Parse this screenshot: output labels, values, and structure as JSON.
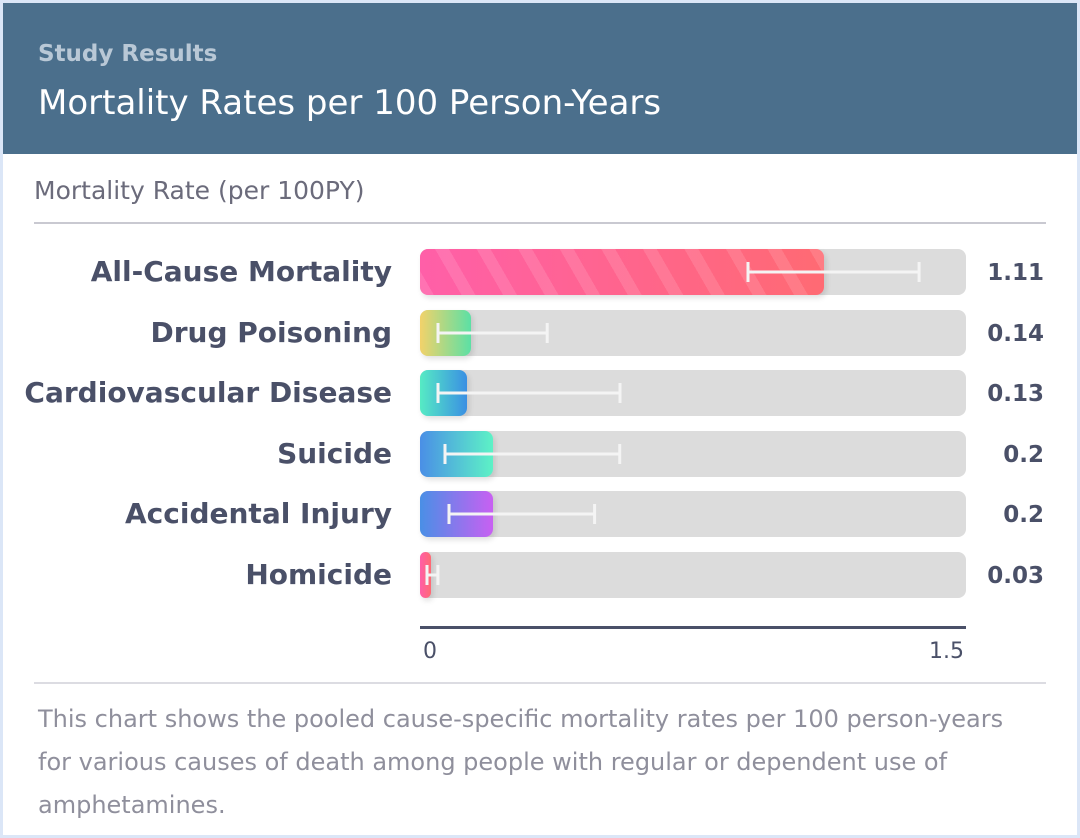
{
  "header": {
    "eyebrow": "Study Results",
    "title": "Mortality Rates per 100 Person-Years"
  },
  "subtitle": "Mortality Rate (per 100PY)",
  "description": "This chart shows the pooled cause-specific mortality rates per 100 person-years for various causes of death among people with regular or dependent use of amphetamines.",
  "chart_data": {
    "type": "bar",
    "orientation": "horizontal",
    "categories": [
      "All-Cause Mortality",
      "Drug Poisoning",
      "Cardiovascular Disease",
      "Suicide",
      "Accidental Injury",
      "Homicide"
    ],
    "values": [
      1.11,
      0.14,
      0.13,
      0.2,
      0.2,
      0.03
    ],
    "value_labels": [
      "1.11",
      "0.14",
      "0.13",
      "0.2",
      "0.2",
      "0.03"
    ],
    "ci_low": [
      0.9,
      0.05,
      0.05,
      0.07,
      0.08,
      0.02
    ],
    "ci_high": [
      1.37,
      0.35,
      0.55,
      0.55,
      0.48,
      0.05
    ],
    "xlim": [
      0,
      1.5
    ],
    "x_ticks": [
      "0",
      "1.5"
    ],
    "xlabel": "",
    "ylabel": "",
    "grid": false,
    "legend": false,
    "bar_colors": [
      [
        "#ff5fa8",
        "#ff6a73"
      ],
      [
        "#f2d26a",
        "#5ce0a5"
      ],
      [
        "#56ebc4",
        "#3a8fe3"
      ],
      [
        "#4a8fe6",
        "#5df2c6"
      ],
      [
        "#4a8fe6",
        "#c860f2"
      ],
      [
        "#ff5fa8",
        "#ff6a73"
      ]
    ],
    "errorbar_color": "#f4f4f4"
  }
}
